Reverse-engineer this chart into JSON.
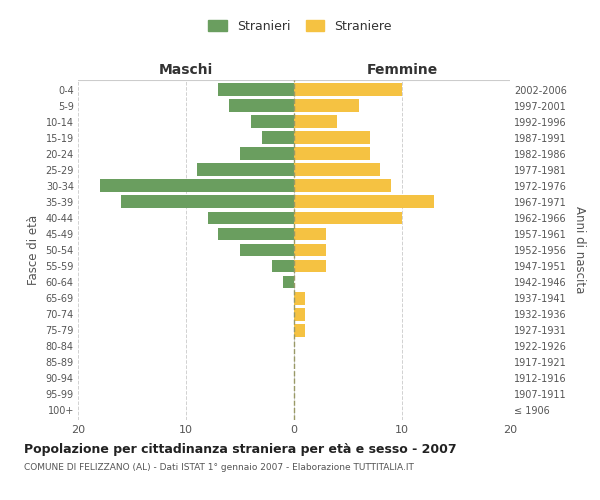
{
  "age_groups": [
    "100+",
    "95-99",
    "90-94",
    "85-89",
    "80-84",
    "75-79",
    "70-74",
    "65-69",
    "60-64",
    "55-59",
    "50-54",
    "45-49",
    "40-44",
    "35-39",
    "30-34",
    "25-29",
    "20-24",
    "15-19",
    "10-14",
    "5-9",
    "0-4"
  ],
  "birth_years": [
    "≤ 1906",
    "1907-1911",
    "1912-1916",
    "1917-1921",
    "1922-1926",
    "1927-1931",
    "1932-1936",
    "1937-1941",
    "1942-1946",
    "1947-1951",
    "1952-1956",
    "1957-1961",
    "1962-1966",
    "1967-1971",
    "1972-1976",
    "1977-1981",
    "1982-1986",
    "1987-1991",
    "1992-1996",
    "1997-2001",
    "2002-2006"
  ],
  "males": [
    0,
    0,
    0,
    0,
    0,
    0,
    0,
    0,
    1,
    2,
    5,
    7,
    8,
    16,
    18,
    9,
    5,
    3,
    4,
    6,
    7
  ],
  "females": [
    0,
    0,
    0,
    0,
    0,
    1,
    1,
    1,
    0,
    3,
    3,
    3,
    10,
    13,
    9,
    8,
    7,
    7,
    4,
    6,
    10
  ],
  "male_color": "#6a9e5f",
  "female_color": "#f5c242",
  "background_color": "#ffffff",
  "grid_color": "#cccccc",
  "bar_height": 0.8,
  "xlim": [
    -20,
    20
  ],
  "xticks": [
    -20,
    -10,
    0,
    10,
    20
  ],
  "xticklabels": [
    "20",
    "10",
    "0",
    "10",
    "20"
  ],
  "title": "Popolazione per cittadinanza straniera per età e sesso - 2007",
  "subtitle": "COMUNE DI FELIZZANO (AL) - Dati ISTAT 1° gennaio 2007 - Elaborazione TUTTITALIA.IT",
  "ylabel_left": "Fasce di età",
  "ylabel_right": "Anni di nascita",
  "header_left": "Maschi",
  "header_right": "Femmine",
  "legend_male": "Stranieri",
  "legend_female": "Straniere"
}
